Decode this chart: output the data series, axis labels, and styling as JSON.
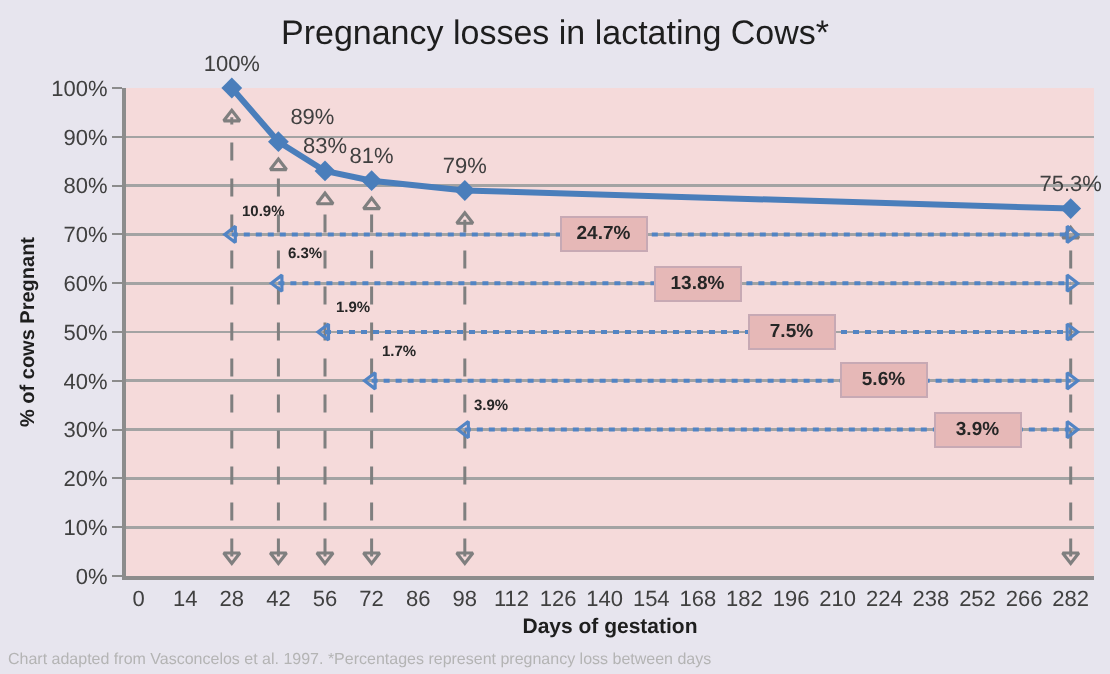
{
  "chart_data": {
    "type": "line",
    "title": "Pregnancy losses in lactating Cows*",
    "xlabel": "Days of gestation",
    "ylabel": "% of cows Pregnant",
    "categories": [
      "0",
      "14",
      "28",
      "42",
      "56",
      "72",
      "86",
      "98",
      "112",
      "126",
      "140",
      "154",
      "168",
      "182",
      "196",
      "210",
      "224",
      "238",
      "252",
      "266",
      "282"
    ],
    "ylim": [
      0,
      100
    ],
    "yticks": [
      {
        "value": 0,
        "label": "0%"
      },
      {
        "value": 10,
        "label": "10%"
      },
      {
        "value": 20,
        "label": "20%"
      },
      {
        "value": 30,
        "label": "30%"
      },
      {
        "value": 40,
        "label": "40%"
      },
      {
        "value": 50,
        "label": "50%"
      },
      {
        "value": 60,
        "label": "60%"
      },
      {
        "value": 70,
        "label": "70%"
      },
      {
        "value": 80,
        "label": "80%"
      },
      {
        "value": 90,
        "label": "90%"
      },
      {
        "value": 100,
        "label": "100%"
      }
    ],
    "grid": "y",
    "series": [
      {
        "x": [
          "28",
          "42",
          "56",
          "72",
          "98",
          "282"
        ],
        "values": [
          100,
          89,
          83,
          81,
          79,
          75.3
        ],
        "color": "#4a7ebb",
        "marker": "diamond",
        "line_style": "solid",
        "value_labels": [
          "100%",
          "89%",
          "83%",
          "81%",
          "79%",
          "75.3%"
        ]
      },
      {
        "x": [
          "28",
          "282"
        ],
        "values": [
          70,
          70
        ],
        "color": "#5284c4",
        "marker": "triangle",
        "line_style": "dotted"
      },
      {
        "x": [
          "42",
          "282"
        ],
        "values": [
          60,
          60
        ],
        "color": "#5284c4",
        "marker": "triangle",
        "line_style": "dotted"
      },
      {
        "x": [
          "56",
          "282"
        ],
        "values": [
          50,
          50
        ],
        "color": "#5284c4",
        "marker": "triangle",
        "line_style": "dotted"
      },
      {
        "x": [
          "72",
          "282"
        ],
        "values": [
          40,
          40
        ],
        "color": "#5284c4",
        "marker": "triangle",
        "line_style": "dotted"
      },
      {
        "x": [
          "98",
          "282"
        ],
        "values": [
          30,
          30
        ],
        "color": "#5284c4",
        "marker": "triangle",
        "line_style": "dotted"
      },
      {
        "x": [
          "28",
          "28"
        ],
        "values": [
          4,
          94
        ],
        "color": "#7f7f7f",
        "marker": "triangle",
        "line_style": "dashed"
      },
      {
        "x": [
          "42",
          "42"
        ],
        "values": [
          4,
          84
        ],
        "color": "#7f7f7f",
        "marker": "triangle",
        "line_style": "dashed"
      },
      {
        "x": [
          "56",
          "56"
        ],
        "values": [
          4,
          77
        ],
        "color": "#7f7f7f",
        "marker": "triangle",
        "line_style": "dashed"
      },
      {
        "x": [
          "72",
          "72"
        ],
        "values": [
          4,
          76
        ],
        "color": "#7f7f7f",
        "marker": "triangle",
        "line_style": "dashed"
      },
      {
        "x": [
          "98",
          "98"
        ],
        "values": [
          4,
          73
        ],
        "color": "#7f7f7f",
        "marker": "triangle",
        "line_style": "dashed"
      },
      {
        "x": [
          "282",
          "282"
        ],
        "values": [
          4,
          70
        ],
        "color": "#7f7f7f",
        "marker": "triangle",
        "line_style": "dashed"
      }
    ],
    "annotations": [
      {
        "text": "24.7%",
        "x": "140",
        "y": 70
      },
      {
        "text": "13.8%",
        "x": "168",
        "y": 60
      },
      {
        "text": "7.5%",
        "x": "196",
        "y": 50
      },
      {
        "text": "5.6%",
        "x": "224",
        "y": 40
      },
      {
        "text": "3.9%",
        "x": "252",
        "y": 30
      },
      {
        "text": "10.9%",
        "x": "28",
        "y": 75
      },
      {
        "text": "6.3%",
        "x": "42",
        "y": 66
      },
      {
        "text": "1.9%",
        "x": "56",
        "y": 55
      },
      {
        "text": "1.7%",
        "x": "72",
        "y": 46
      },
      {
        "text": "3.9%",
        "x": "98",
        "y": 35
      },
      "Chart adapted from Vasconcelos et al. 1997. *Percentages represent pregnancy loss between days"
    ]
  }
}
